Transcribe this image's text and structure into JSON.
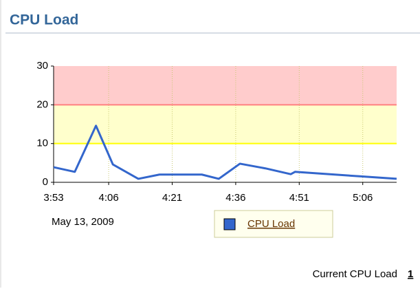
{
  "chart_data": {
    "type": "line",
    "title": "CPU Load",
    "x": [
      233,
      238,
      243,
      247,
      253,
      258,
      268,
      272,
      277,
      283,
      289,
      290,
      314
    ],
    "series": [
      {
        "name": "CPU Load",
        "color": "#3366cc",
        "values": [
          3.9,
          2.7,
          14.6,
          4.6,
          0.9,
          2.0,
          2.0,
          0.9,
          4.8,
          3.6,
          2.1,
          2.7,
          0.9
        ]
      }
    ],
    "xlim": [
      233,
      314
    ],
    "xticks": [
      {
        "value": 233,
        "label": "3:53"
      },
      {
        "value": 246,
        "label": "4:06"
      },
      {
        "value": 261,
        "label": "4:21"
      },
      {
        "value": 276,
        "label": "4:36"
      },
      {
        "value": 291,
        "label": "4:51"
      },
      {
        "value": 306,
        "label": "5:06"
      }
    ],
    "ylim": [
      0,
      30
    ],
    "yticks": [
      0,
      10,
      20,
      30
    ],
    "grid": true,
    "date_label": "May 13, 2009",
    "thresholds": {
      "warning": 10,
      "critical": 20,
      "warning_color": "#ffff00",
      "critical_color": "#ff8080",
      "warning_fill": "#ffffcc",
      "critical_fill": "#ffcccc"
    }
  },
  "current": {
    "label": "Current CPU Load",
    "value": 1
  }
}
